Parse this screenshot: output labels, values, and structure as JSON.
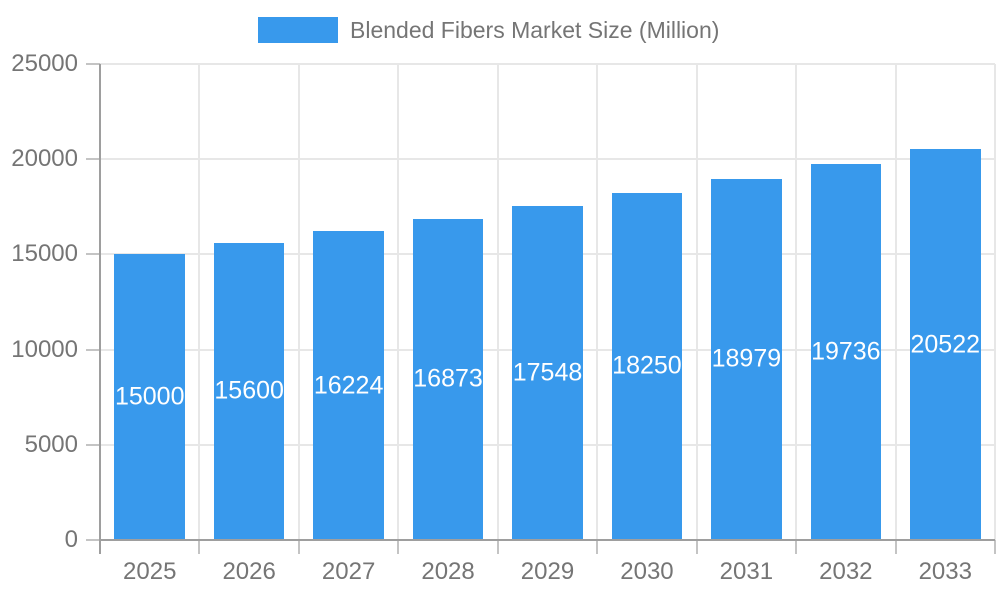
{
  "chart_data": {
    "type": "bar",
    "legend": "Blended Fibers Market Size (Million)",
    "legend_position": "top",
    "categories": [
      "2025",
      "2026",
      "2027",
      "2028",
      "2029",
      "2030",
      "2031",
      "2032",
      "2033"
    ],
    "series": [
      {
        "name": "Blended Fibers Market Size (Million)",
        "values": [
          15000,
          15600,
          16224,
          16873,
          17548,
          18250,
          18979,
          19736,
          20522
        ]
      }
    ],
    "value_labels": [
      "15000",
      "15600",
      "16224",
      "16873",
      "17548",
      "18250",
      "18979",
      "19736",
      "20522"
    ],
    "ylim": [
      0,
      25000
    ],
    "ytick_interval": 5000,
    "yticks": [
      "0",
      "5000",
      "10000",
      "15000",
      "20000",
      "25000"
    ],
    "grid": true,
    "colors": {
      "bar": "#3899EC",
      "axis_text": "#757575",
      "value_label_text": "#FFFFFF",
      "gridline": "#E7E7E7",
      "axis_line": "#9E9E9E",
      "tick": "#C4C4C4"
    }
  }
}
